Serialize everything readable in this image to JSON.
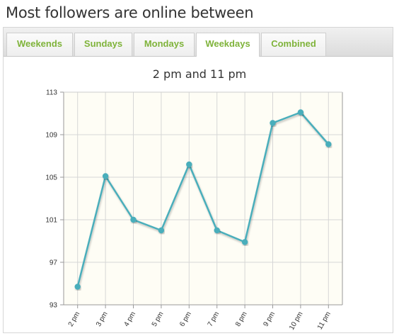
{
  "heading": "Most followers are online between",
  "tabs": [
    {
      "label": "Weekends",
      "active": false
    },
    {
      "label": "Sundays",
      "active": false
    },
    {
      "label": "Mondays",
      "active": false
    },
    {
      "label": "Weekdays",
      "active": true
    },
    {
      "label": "Combined",
      "active": false
    }
  ],
  "colors": {
    "accent": "#7fb33a",
    "line": "#4aaebb",
    "plot_bg": "#fefdf5"
  },
  "chart_data": {
    "type": "line",
    "title": "2 pm and 11 pm",
    "xlabel": "",
    "ylabel": "",
    "categories": [
      "2 pm",
      "3 pm",
      "4 pm",
      "5 pm",
      "6 pm",
      "7 pm",
      "8 pm",
      "9 pm",
      "10 pm",
      "11 pm"
    ],
    "series": [
      {
        "values": [
          94.7,
          105.1,
          101.0,
          100.0,
          106.2,
          100.0,
          98.9,
          110.1,
          111.1,
          108.1
        ]
      }
    ],
    "ylim": [
      93,
      113
    ],
    "yticks": [
      93,
      97,
      101,
      105,
      109,
      113
    ],
    "grid": true,
    "legend": "none"
  }
}
